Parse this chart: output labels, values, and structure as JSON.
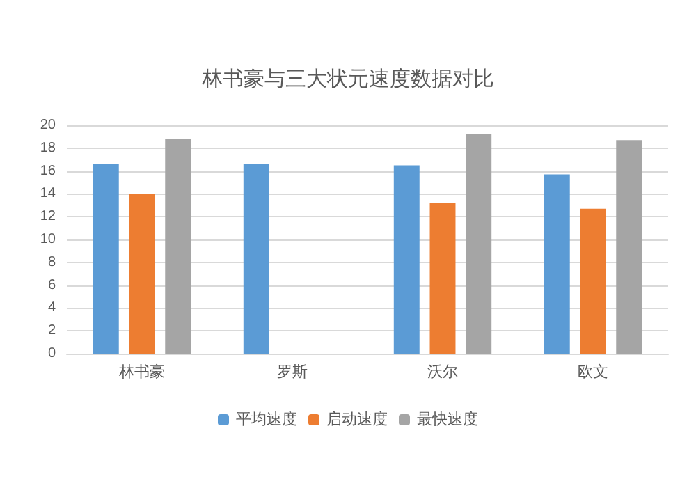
{
  "chart_data": {
    "type": "bar",
    "title": "林书豪与三大状元速度数据对比",
    "categories": [
      "林书豪",
      "罗斯",
      "沃尔",
      "欧文"
    ],
    "series": [
      {
        "name": "平均速度",
        "color": "#5b9bd5",
        "values": [
          16.6,
          16.6,
          16.5,
          15.7
        ]
      },
      {
        "name": "启动速度",
        "color": "#ed7d31",
        "values": [
          14.0,
          null,
          13.2,
          12.7
        ]
      },
      {
        "name": "最快速度",
        "color": "#a5a5a5",
        "values": [
          18.8,
          null,
          19.2,
          18.7
        ]
      }
    ],
    "ylim": [
      0,
      20
    ],
    "yticks": [
      0,
      2,
      4,
      6,
      8,
      10,
      12,
      14,
      16,
      18,
      20
    ],
    "grid": "y",
    "legend": "bottom"
  }
}
